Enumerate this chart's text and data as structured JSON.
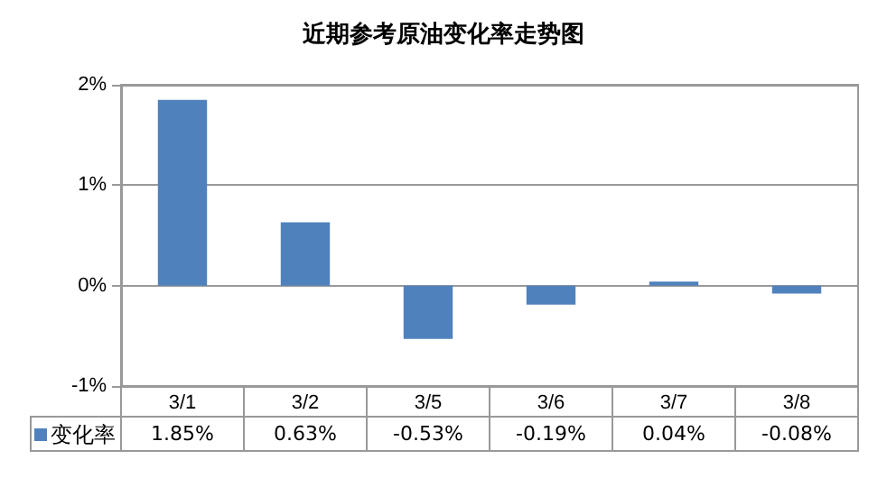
{
  "chart_data": {
    "type": "bar",
    "title": "近期参考原油变化率走势图",
    "categories": [
      "3/1",
      "3/2",
      "3/5",
      "3/6",
      "3/7",
      "3/8"
    ],
    "series": [
      {
        "name": "变化率",
        "color": "#4f81bd",
        "values": [
          1.85,
          0.63,
          -0.53,
          -0.19,
          0.04,
          -0.08
        ],
        "value_labels": [
          "1.85%",
          "0.63%",
          "-0.53%",
          "-0.19%",
          "0.04%",
          "-0.08%"
        ]
      }
    ],
    "ylim": [
      -1,
      2
    ],
    "yticks": [
      {
        "value": -1,
        "label": "-1%"
      },
      {
        "value": 0,
        "label": "0%"
      },
      {
        "value": 1,
        "label": "1%"
      },
      {
        "value": 2,
        "label": "2%"
      }
    ],
    "grid": "y",
    "legend": "bottom left",
    "data_labels": true
  }
}
